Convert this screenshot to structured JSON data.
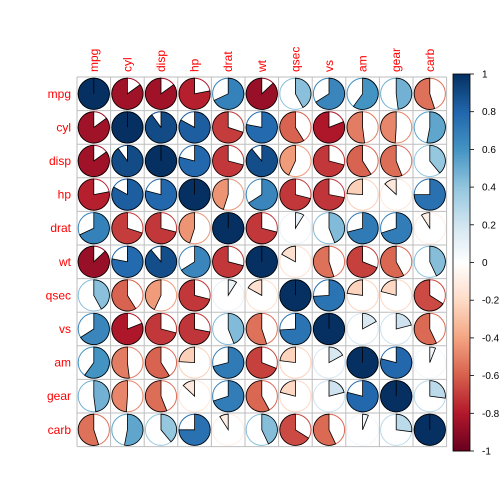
{
  "chart_data": {
    "type": "heatmap",
    "variables": [
      "mpg",
      "cyl",
      "disp",
      "hp",
      "drat",
      "wt",
      "qsec",
      "vs",
      "am",
      "gear",
      "carb"
    ],
    "matrix": [
      [
        1.0,
        -0.85,
        -0.85,
        -0.78,
        0.68,
        -0.87,
        0.42,
        0.66,
        0.6,
        0.48,
        -0.55
      ],
      [
        -0.85,
        1.0,
        0.9,
        0.83,
        -0.7,
        0.78,
        -0.59,
        -0.81,
        -0.52,
        -0.49,
        0.53
      ],
      [
        -0.85,
        0.9,
        1.0,
        0.79,
        -0.71,
        0.89,
        -0.43,
        -0.71,
        -0.59,
        -0.56,
        0.39
      ],
      [
        -0.78,
        0.83,
        0.79,
        1.0,
        -0.45,
        0.66,
        -0.71,
        -0.72,
        -0.24,
        -0.13,
        0.75
      ],
      [
        0.68,
        -0.7,
        -0.71,
        -0.45,
        1.0,
        -0.71,
        0.09,
        0.44,
        0.71,
        0.7,
        -0.09
      ],
      [
        -0.87,
        0.78,
        0.89,
        0.66,
        -0.71,
        1.0,
        -0.17,
        -0.55,
        -0.69,
        -0.58,
        0.43
      ],
      [
        0.42,
        -0.59,
        -0.43,
        -0.71,
        0.09,
        -0.17,
        1.0,
        0.74,
        -0.23,
        -0.21,
        -0.66
      ],
      [
        0.66,
        -0.81,
        -0.71,
        -0.72,
        0.44,
        -0.55,
        0.74,
        1.0,
        0.17,
        0.21,
        -0.57
      ],
      [
        0.6,
        -0.52,
        -0.59,
        -0.24,
        0.71,
        -0.69,
        -0.23,
        0.17,
        1.0,
        0.79,
        0.06
      ],
      [
        0.48,
        -0.49,
        -0.56,
        -0.13,
        0.7,
        -0.58,
        -0.21,
        0.21,
        0.79,
        1.0,
        0.27
      ],
      [
        -0.55,
        0.53,
        0.39,
        0.75,
        -0.09,
        0.43,
        -0.66,
        -0.57,
        0.06,
        0.27,
        1.0
      ]
    ],
    "method": "pie",
    "color_scale": {
      "min": -1,
      "max": 1,
      "stops": [
        "#67001f",
        "#b2182b",
        "#d6604d",
        "#f4a582",
        "#fddbc7",
        "#ffffff",
        "#d1e5f0",
        "#92c5de",
        "#4393c3",
        "#2166ac",
        "#053061"
      ],
      "ticks": [
        -1,
        -0.8,
        -0.6,
        -0.4,
        -0.2,
        0,
        0.2,
        0.4,
        0.6,
        0.8,
        1
      ],
      "tick_labels": [
        "-1",
        "-0.8",
        "-0.6",
        "-0.4",
        "-0.2",
        "0",
        "0.2",
        "0.4",
        "0.6",
        "0.8",
        "1"
      ]
    },
    "label_color": "#ff0000",
    "grid": true,
    "legend_position": "right"
  }
}
